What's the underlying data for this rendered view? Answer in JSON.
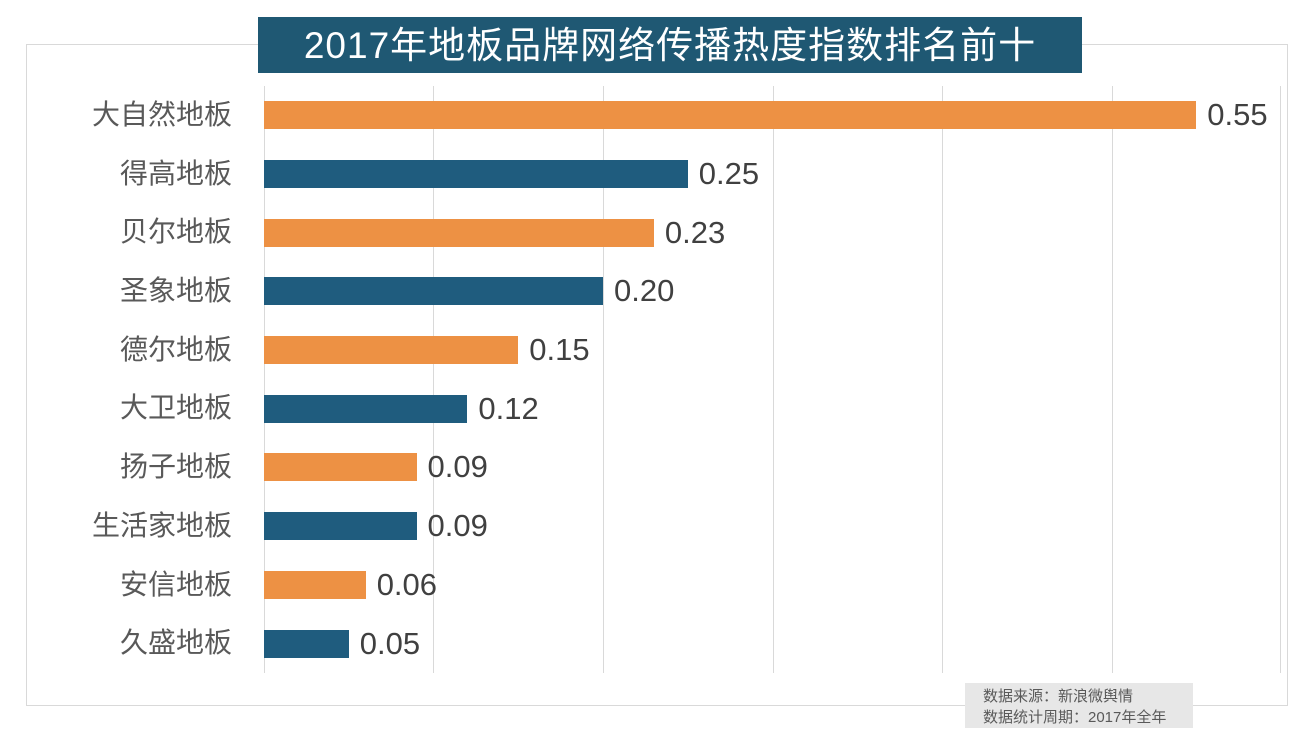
{
  "header": {
    "title": "2017年地板品牌网络传播热度指数排名前十",
    "bg_color": "#1f5873",
    "text_color": "#ffffff"
  },
  "source_note": {
    "line1": "数据来源：新浪微舆情",
    "line2": "数据统计周期：2017年全年",
    "bg_color": "#e7e7e7",
    "text_color": "#595959"
  },
  "colors": {
    "orange": "#ed9144",
    "blue": "#1f5c7e",
    "gridline": "#d9d9d9",
    "frame_border": "#d9d9d9",
    "category_label": "#595959",
    "value_label": "#404040",
    "background": "#ffffff"
  },
  "chart_data": {
    "type": "bar",
    "orientation": "horizontal",
    "title": "2017年地板品牌网络传播热度指数排名前十",
    "categories": [
      "大自然地板",
      "得高地板",
      "贝尔地板",
      "圣象地板",
      "德尔地板",
      "大卫地板",
      "扬子地板",
      "生活家地板",
      "安信地板",
      "久盛地板"
    ],
    "values": [
      0.55,
      0.25,
      0.23,
      0.2,
      0.15,
      0.12,
      0.09,
      0.09,
      0.06,
      0.05
    ],
    "value_labels": [
      "0.55",
      "0.25",
      "0.23",
      "0.20",
      "0.15",
      "0.12",
      "0.09",
      "0.09",
      "0.06",
      "0.05"
    ],
    "bar_colors": [
      "#ed9144",
      "#1f5c7e",
      "#ed9144",
      "#1f5c7e",
      "#ed9144",
      "#1f5c7e",
      "#ed9144",
      "#1f5c7e",
      "#ed9144",
      "#1f5c7e"
    ],
    "xlabel": "",
    "ylabel": "",
    "xlim": [
      0,
      0.6
    ],
    "gridline_step": 0.1,
    "grid": true,
    "legend": false,
    "data_labels": true
  }
}
